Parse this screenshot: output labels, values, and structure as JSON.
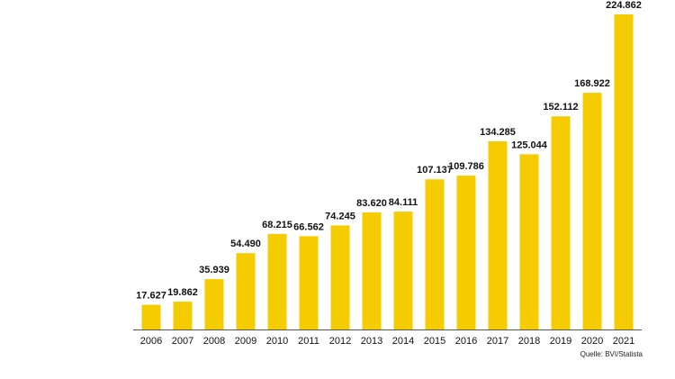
{
  "chart_data": {
    "type": "bar",
    "title": "",
    "xlabel": "",
    "ylabel": "",
    "categories": [
      "2006",
      "2007",
      "2008",
      "2009",
      "2010",
      "2011",
      "2012",
      "2013",
      "2014",
      "2015",
      "2016",
      "2017",
      "2018",
      "2019",
      "2020",
      "2021"
    ],
    "values": [
      17627,
      19862,
      35939,
      54490,
      68215,
      66562,
      74245,
      83620,
      84111,
      107137,
      109786,
      134285,
      125044,
      152112,
      168922,
      224862
    ],
    "value_labels": [
      "17.627",
      "19.862",
      "35.939",
      "54.490",
      "68.215",
      "66.562",
      "74.245",
      "83.620",
      "84.111",
      "107.137",
      "109.786",
      "134.285",
      "125.044",
      "152.112",
      "168.922",
      "224.862"
    ],
    "ylim": [
      0,
      224862
    ],
    "grid": false,
    "legend": "none",
    "colors": {
      "bar": "#F5CC00",
      "axis": "#555555",
      "text": "#111111"
    }
  },
  "source": "Quelle: BVI/Statista"
}
